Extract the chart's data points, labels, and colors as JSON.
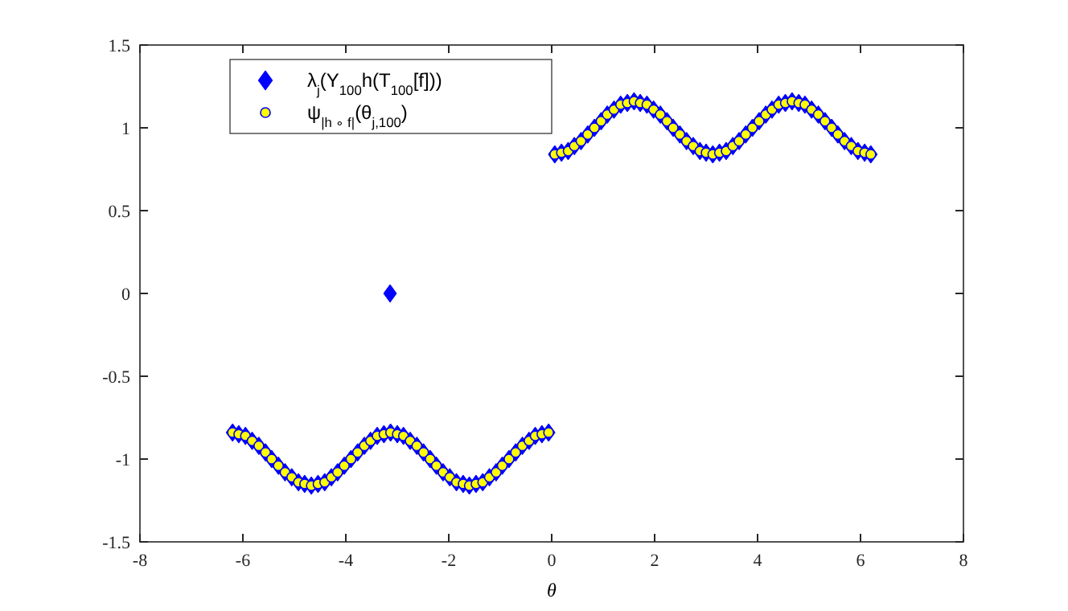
{
  "chart_data": {
    "type": "scatter",
    "xlabel": "θ",
    "xlim": [
      -8,
      8
    ],
    "ylim": [
      -1.5,
      1.5
    ],
    "xticks": [
      -8,
      -6,
      -4,
      -2,
      0,
      2,
      4,
      6,
      8
    ],
    "yticks": [
      -1.5,
      -1,
      -0.5,
      0,
      0.5,
      1,
      1.5
    ],
    "grid": false,
    "legend": "top left",
    "series": [
      {
        "name": "λ$_{j}$(Y$_{100}$h(T$_{100}$[f]))",
        "color": "#0000ff",
        "marker": "diamond",
        "x": [
          -6.2,
          -6.08,
          -5.95,
          -5.82,
          -5.69,
          -5.56,
          -5.44,
          -5.31,
          -5.18,
          -5.05,
          -4.92,
          -4.8,
          -4.67,
          -4.54,
          -4.41,
          -4.28,
          -4.16,
          -4.03,
          -3.9,
          -3.77,
          -3.64,
          -3.52,
          -3.39,
          -3.26,
          -3.13,
          -3.0,
          -2.88,
          -2.75,
          -2.62,
          -2.49,
          -2.36,
          -2.24,
          -2.11,
          -1.98,
          -1.85,
          -1.72,
          -1.6,
          -1.47,
          -1.34,
          -1.21,
          -1.08,
          -0.96,
          -0.83,
          -0.7,
          -0.57,
          -0.44,
          -0.32,
          -0.19,
          -0.06,
          -3.14,
          0.06,
          0.19,
          0.32,
          0.44,
          0.57,
          0.7,
          0.83,
          0.96,
          1.08,
          1.21,
          1.34,
          1.47,
          1.6,
          1.72,
          1.85,
          1.98,
          2.11,
          2.24,
          2.36,
          2.49,
          2.62,
          2.75,
          2.88,
          3.0,
          3.13,
          3.26,
          3.39,
          3.52,
          3.64,
          3.77,
          3.9,
          4.03,
          4.16,
          4.28,
          4.41,
          4.54,
          4.67,
          4.8,
          4.92,
          5.05,
          5.18,
          5.31,
          5.44,
          5.56,
          5.69,
          5.82,
          5.95,
          6.08,
          6.2
        ],
        "values": [
          -0.84,
          -0.85,
          -0.86,
          -0.89,
          -0.92,
          -0.96,
          -1,
          -1.04,
          -1.08,
          -1.11,
          -1.14,
          -1.15,
          -1.16,
          -1.15,
          -1.14,
          -1.11,
          -1.08,
          -1.04,
          -1,
          -0.96,
          -0.92,
          -0.89,
          -0.86,
          -0.85,
          -0.84,
          -0.85,
          -0.86,
          -0.89,
          -0.92,
          -0.96,
          -1,
          -1.04,
          -1.08,
          -1.11,
          -1.14,
          -1.15,
          -1.16,
          -1.15,
          -1.14,
          -1.11,
          -1.08,
          -1.04,
          -1,
          -0.96,
          -0.92,
          -0.89,
          -0.86,
          -0.85,
          -0.84,
          0,
          0.84,
          0.85,
          0.86,
          0.89,
          0.92,
          0.96,
          1,
          1.04,
          1.08,
          1.11,
          1.14,
          1.15,
          1.16,
          1.15,
          1.14,
          1.11,
          1.08,
          1.04,
          1,
          0.96,
          0.92,
          0.89,
          0.86,
          0.85,
          0.84,
          0.85,
          0.86,
          0.89,
          0.92,
          0.96,
          1,
          1.04,
          1.08,
          1.11,
          1.14,
          1.15,
          1.16,
          1.15,
          1.14,
          1.11,
          1.08,
          1.04,
          1,
          0.96,
          0.92,
          0.89,
          0.86,
          0.85,
          0.84
        ]
      },
      {
        "name": "ψ$_{|h ∘ f|}$(θ$_{j,100}$)",
        "color": "#ffff00",
        "marker": "circle",
        "x": [
          -6.2,
          -6.08,
          -5.95,
          -5.82,
          -5.69,
          -5.56,
          -5.44,
          -5.31,
          -5.18,
          -5.05,
          -4.92,
          -4.8,
          -4.67,
          -4.54,
          -4.41,
          -4.28,
          -4.16,
          -4.03,
          -3.9,
          -3.77,
          -3.64,
          -3.52,
          -3.39,
          -3.26,
          -3.13,
          -3.0,
          -2.88,
          -2.75,
          -2.62,
          -2.49,
          -2.36,
          -2.24,
          -2.11,
          -1.98,
          -1.85,
          -1.72,
          -1.6,
          -1.47,
          -1.34,
          -1.21,
          -1.08,
          -0.96,
          -0.83,
          -0.7,
          -0.57,
          -0.44,
          -0.32,
          -0.19,
          -0.06,
          0.06,
          0.19,
          0.32,
          0.44,
          0.57,
          0.7,
          0.83,
          0.96,
          1.08,
          1.21,
          1.34,
          1.47,
          1.6,
          1.72,
          1.85,
          1.98,
          2.11,
          2.24,
          2.36,
          2.49,
          2.62,
          2.75,
          2.88,
          3.0,
          3.13,
          3.26,
          3.39,
          3.52,
          3.64,
          3.77,
          3.9,
          4.03,
          4.16,
          4.28,
          4.41,
          4.54,
          4.67,
          4.8,
          4.92,
          5.05,
          5.18,
          5.31,
          5.44,
          5.56,
          5.69,
          5.82,
          5.95,
          6.08,
          6.2
        ],
        "values": [
          -0.84,
          -0.85,
          -0.86,
          -0.89,
          -0.92,
          -0.96,
          -1,
          -1.04,
          -1.08,
          -1.11,
          -1.14,
          -1.15,
          -1.16,
          -1.15,
          -1.14,
          -1.11,
          -1.08,
          -1.04,
          -1,
          -0.96,
          -0.92,
          -0.89,
          -0.86,
          -0.85,
          -0.84,
          -0.85,
          -0.86,
          -0.89,
          -0.92,
          -0.96,
          -1,
          -1.04,
          -1.08,
          -1.11,
          -1.14,
          -1.15,
          -1.16,
          -1.15,
          -1.14,
          -1.11,
          -1.08,
          -1.04,
          -1,
          -0.96,
          -0.92,
          -0.89,
          -0.86,
          -0.85,
          -0.84,
          0.84,
          0.85,
          0.86,
          0.89,
          0.92,
          0.96,
          1,
          1.04,
          1.08,
          1.11,
          1.14,
          1.15,
          1.16,
          1.15,
          1.14,
          1.11,
          1.08,
          1.04,
          1,
          0.96,
          0.92,
          0.89,
          0.86,
          0.85,
          0.84,
          0.85,
          0.86,
          0.89,
          0.92,
          0.96,
          1,
          1.04,
          1.08,
          1.11,
          1.14,
          1.15,
          1.16,
          1.15,
          1.14,
          1.11,
          1.08,
          1.04,
          1,
          0.96,
          0.92,
          0.89,
          0.86,
          0.85,
          0.84
        ]
      }
    ]
  }
}
